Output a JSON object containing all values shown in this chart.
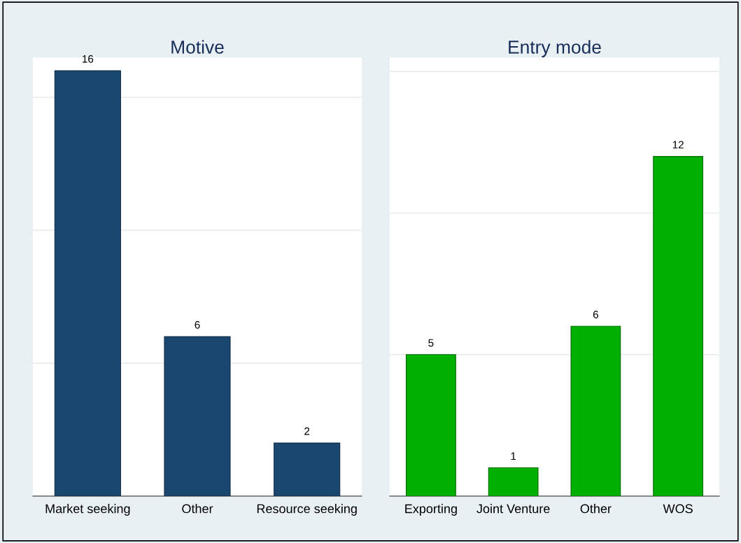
{
  "chart_data": [
    {
      "type": "bar",
      "title": "Motive",
      "categories": [
        "Market seeking",
        "Other",
        "Resource seeking"
      ],
      "values": [
        16,
        6,
        2
      ],
      "color": "#1a476f",
      "data_labels": true,
      "ylim": [
        0,
        16.5
      ],
      "yticks": [
        {
          "value": 0,
          "label": null
        },
        {
          "value": 5,
          "label": null
        },
        {
          "value": 10,
          "label": null
        },
        {
          "value": 15,
          "label": null
        }
      ],
      "tick_labels": "x",
      "grid": "y"
    },
    {
      "type": "bar",
      "title": "Entry mode",
      "categories": [
        "Exporting",
        "Joint Venture",
        "Other",
        "WOS"
      ],
      "values": [
        5,
        1,
        6,
        12
      ],
      "color": "#00b000",
      "data_labels": true,
      "ylim": [
        0,
        15.5
      ],
      "yticks": [
        {
          "value": 0,
          "label": null
        },
        {
          "value": 5,
          "label": null
        },
        {
          "value": 10,
          "label": null
        },
        {
          "value": 15,
          "label": null
        }
      ],
      "tick_labels": "x",
      "grid": "y"
    }
  ]
}
